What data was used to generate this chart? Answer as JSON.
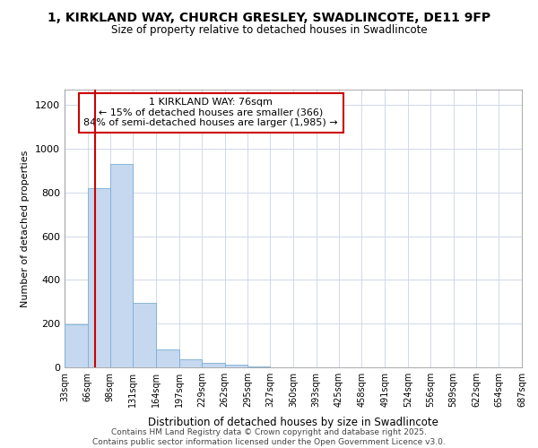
{
  "title": "1, KIRKLAND WAY, CHURCH GRESLEY, SWADLINCOTE, DE11 9FP",
  "subtitle": "Size of property relative to detached houses in Swadlincote",
  "xlabel": "Distribution of detached houses by size in Swadlincote",
  "ylabel": "Number of detached properties",
  "annotation_lines": [
    "1 KIRKLAND WAY: 76sqm",
    "← 15% of detached houses are smaller (366)",
    "84% of semi-detached houses are larger (1,985) →"
  ],
  "property_size": 76,
  "bar_color": "#c5d8f0",
  "bar_edge_color": "#7aadd4",
  "vline_color": "#cc0000",
  "annotation_box_color": "#cc0000",
  "annotation_bg": "white",
  "grid_color": "#d0d8e8",
  "footer_line1": "Contains HM Land Registry data © Crown copyright and database right 2025.",
  "footer_line2": "Contains public sector information licensed under the Open Government Licence v3.0.",
  "bin_edges": [
    33,
    66,
    98,
    131,
    164,
    197,
    229,
    262,
    295,
    327,
    360,
    393,
    425,
    458,
    491,
    524,
    556,
    589,
    622,
    654,
    687
  ],
  "bar_heights": [
    196,
    820,
    930,
    295,
    82,
    38,
    20,
    12,
    5,
    0,
    0,
    0,
    0,
    0,
    0,
    0,
    0,
    0,
    0,
    0
  ],
  "ylim": [
    0,
    1270
  ],
  "yticks": [
    0,
    200,
    400,
    600,
    800,
    1000,
    1200
  ]
}
